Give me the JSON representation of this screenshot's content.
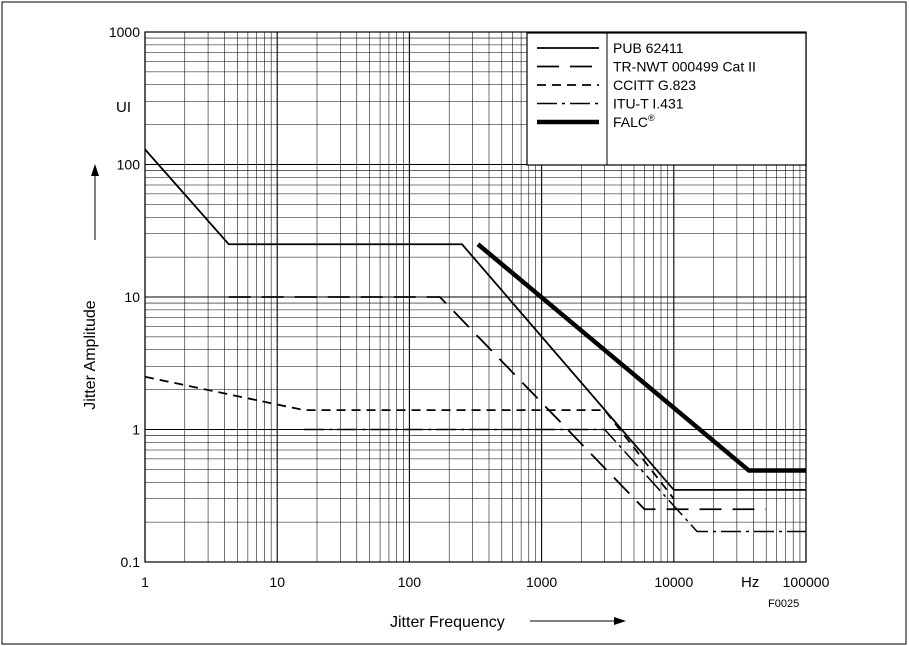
{
  "chart_data": {
    "type": "line",
    "xscale": "log",
    "yscale": "log",
    "xlim": [
      1,
      100000
    ],
    "ylim": [
      0.1,
      1000
    ],
    "xlabel": "Jitter Frequency",
    "ylabel": "Jitter Amplitude",
    "x_unit": "Hz",
    "y_unit": "UI",
    "x_ticks": [
      {
        "value": 1,
        "label": "1"
      },
      {
        "value": 10,
        "label": "10"
      },
      {
        "value": 100,
        "label": "100"
      },
      {
        "value": 1000,
        "label": "1000"
      },
      {
        "value": 10000,
        "label": "10000"
      },
      {
        "value": 100000,
        "label": "100000"
      }
    ],
    "y_ticks": [
      {
        "value": 0.1,
        "label": "0.1"
      },
      {
        "value": 1,
        "label": "1"
      },
      {
        "value": 10,
        "label": "10"
      },
      {
        "value": 100,
        "label": "100"
      },
      {
        "value": 1000,
        "label": "1000"
      }
    ],
    "grid": true,
    "legend_position": "top-right",
    "figure_id": "F0025",
    "series": [
      {
        "name": "PUB 62411",
        "style": "solid",
        "stroke_width": 1.8,
        "points": [
          [
            1,
            130
          ],
          [
            4.3,
            25
          ],
          [
            250,
            25
          ],
          [
            10000,
            0.35
          ],
          [
            100000,
            0.35
          ]
        ]
      },
      {
        "name": "TR-NWT 000499 Cat II",
        "style": "long-dash",
        "stroke_width": 1.8,
        "points": [
          [
            4.3,
            10
          ],
          [
            170,
            10
          ],
          [
            6000,
            0.25
          ],
          [
            50000,
            0.25
          ]
        ]
      },
      {
        "name": "CCITT G.823",
        "style": "short-dash",
        "stroke_width": 1.8,
        "points": [
          [
            1,
            2.5
          ],
          [
            16,
            1.4
          ],
          [
            3000,
            1.4
          ],
          [
            10000,
            0.3
          ]
        ]
      },
      {
        "name": "ITU-T I.431",
        "style": "dash-dot",
        "stroke_width": 1.5,
        "points": [
          [
            16,
            1
          ],
          [
            3000,
            1
          ],
          [
            15000,
            0.17
          ],
          [
            100000,
            0.17
          ]
        ]
      },
      {
        "name": "FALC®",
        "style": "thick",
        "stroke_width": 4.5,
        "points": [
          [
            330,
            25
          ],
          [
            37000,
            0.49
          ],
          [
            100000,
            0.49
          ]
        ]
      }
    ]
  }
}
